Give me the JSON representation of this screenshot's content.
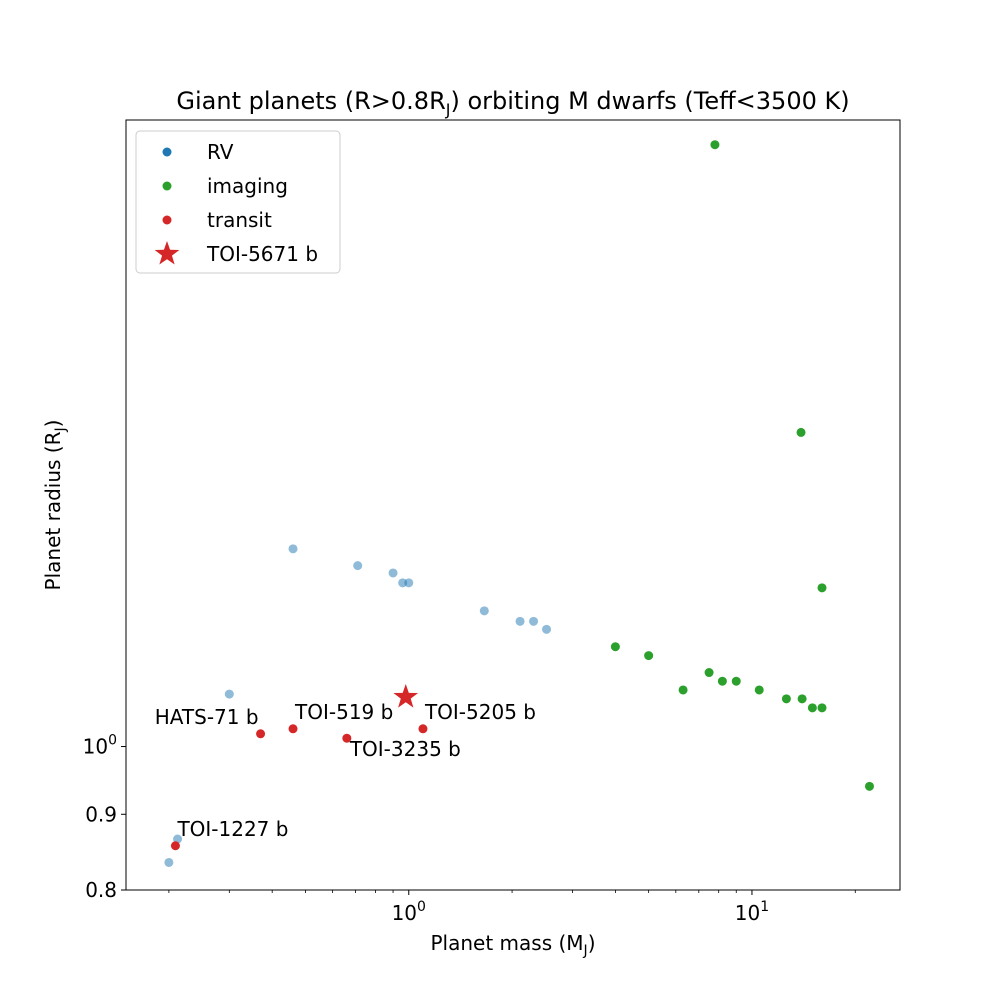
{
  "chart_data": {
    "type": "scatter",
    "title": "Giant planets (R>0.8RJ) orbiting M dwarfs (Teff<3500 K)",
    "title_parts": {
      "before": "Giant planets (R>0.8R",
      "sub": "J",
      "after": ") orbiting M dwarfs (Teff<3500 K)"
    },
    "xlabel": "Planet mass (MJ)",
    "xlabel_parts": {
      "before": "Planet mass (M",
      "sub": "J",
      "after": ")"
    },
    "ylabel": "Planet radius (RJ)",
    "ylabel_parts": {
      "before": "Planet radius (R",
      "sub": "J",
      "after": ")"
    },
    "x_scale": "log",
    "y_scale": "log",
    "xlim": [
      0.15,
      27
    ],
    "ylim": [
      0.8,
      2.65
    ],
    "grid": false,
    "legend_position": "upper-left",
    "x_ticks": [
      {
        "value": 1,
        "base": "10",
        "exp": "0"
      },
      {
        "value": 10,
        "base": "10",
        "exp": "1"
      }
    ],
    "y_ticks": [
      {
        "value": 0.8,
        "label": "0.8"
      },
      {
        "value": 0.9,
        "label": "0.9"
      },
      {
        "value": 1.0,
        "label": "10",
        "base": "10",
        "exp": "0"
      }
    ],
    "series": [
      {
        "name": "RV",
        "color": "#1f77b4",
        "marker": "circle",
        "alpha": 0.5,
        "points": [
          {
            "x": 0.3,
            "y": 1.085
          },
          {
            "x": 0.46,
            "y": 1.36
          },
          {
            "x": 0.71,
            "y": 1.325
          },
          {
            "x": 0.9,
            "y": 1.31
          },
          {
            "x": 0.96,
            "y": 1.29
          },
          {
            "x": 1.0,
            "y": 1.29
          },
          {
            "x": 1.66,
            "y": 1.235
          },
          {
            "x": 2.11,
            "y": 1.215
          },
          {
            "x": 2.31,
            "y": 1.215
          },
          {
            "x": 2.52,
            "y": 1.2
          },
          {
            "x": 0.2,
            "y": 0.835
          },
          {
            "x": 0.212,
            "y": 0.866
          }
        ]
      },
      {
        "name": "imaging",
        "color": "#2ca02c",
        "marker": "circle",
        "alpha": 1,
        "points": [
          {
            "x": 7.8,
            "y": 2.55
          },
          {
            "x": 13.9,
            "y": 1.63
          },
          {
            "x": 16.0,
            "y": 1.28
          },
          {
            "x": 4.0,
            "y": 1.168
          },
          {
            "x": 5.0,
            "y": 1.152
          },
          {
            "x": 6.3,
            "y": 1.092
          },
          {
            "x": 7.5,
            "y": 1.122
          },
          {
            "x": 8.2,
            "y": 1.107
          },
          {
            "x": 9.0,
            "y": 1.107
          },
          {
            "x": 10.5,
            "y": 1.092
          },
          {
            "x": 12.6,
            "y": 1.077
          },
          {
            "x": 14.0,
            "y": 1.077
          },
          {
            "x": 15.0,
            "y": 1.062
          },
          {
            "x": 16.0,
            "y": 1.062
          },
          {
            "x": 22.0,
            "y": 0.94
          }
        ]
      },
      {
        "name": "transit",
        "color": "#d62728",
        "marker": "circle",
        "alpha": 1,
        "points": [
          {
            "x": 0.37,
            "y": 1.02,
            "label": "HATS-71 b",
            "label_anchor": "end",
            "label_dx": -2,
            "label_dy": -10
          },
          {
            "x": 0.46,
            "y": 1.028,
            "label": "TOI-519 b",
            "label_anchor": "start",
            "label_dx": 2,
            "label_dy": -10
          },
          {
            "x": 0.66,
            "y": 1.013,
            "label": "TOI-3235 b",
            "label_anchor": "start",
            "label_dx": 3,
            "label_dy": 18
          },
          {
            "x": 1.1,
            "y": 1.028,
            "label": "TOI-5205 b",
            "label_anchor": "start",
            "label_dx": 2,
            "label_dy": -10
          },
          {
            "x": 0.209,
            "y": 0.857,
            "label": "TOI-1227 b",
            "label_anchor": "start",
            "label_dx": 2,
            "label_dy": -10
          }
        ]
      },
      {
        "name": "TOI-5671 b",
        "color": "#d62728",
        "marker": "star",
        "alpha": 1,
        "points": [
          {
            "x": 0.98,
            "y": 1.08
          }
        ]
      }
    ]
  }
}
